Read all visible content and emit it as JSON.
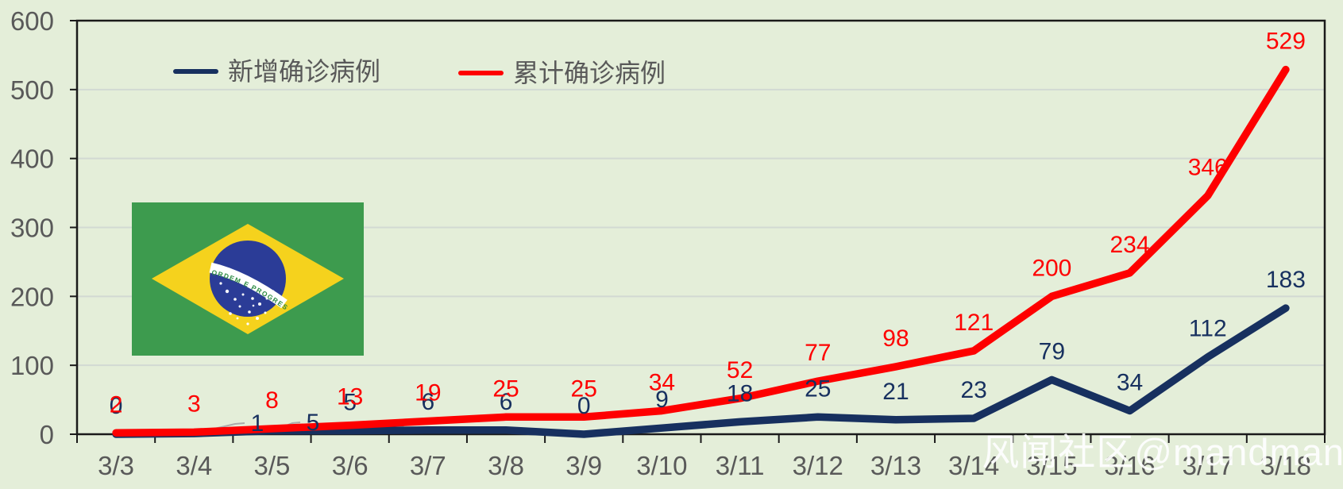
{
  "chart_data": {
    "type": "line",
    "categories": [
      "3/3",
      "3/4",
      "3/5",
      "3/6",
      "3/7",
      "3/8",
      "3/9",
      "3/10",
      "3/11",
      "3/12",
      "3/13",
      "3/14",
      "3/15",
      "3/16",
      "3/17",
      "3/18"
    ],
    "series": [
      {
        "name": "新增确诊病例",
        "color": "#17305f",
        "values": [
          0,
          1,
          5,
          5,
          6,
          6,
          0,
          9,
          18,
          25,
          21,
          23,
          79,
          34,
          112,
          183
        ]
      },
      {
        "name": "累计确诊病例",
        "color": "#fe0000",
        "values": [
          2,
          3,
          8,
          13,
          19,
          25,
          25,
          34,
          52,
          77,
          98,
          121,
          200,
          234,
          346,
          529
        ]
      }
    ],
    "title": "",
    "xlabel": "",
    "ylabel": "",
    "ylim": [
      0,
      600
    ],
    "yticks": [
      0,
      100,
      200,
      300,
      400,
      500,
      600
    ],
    "grid": "horizontal",
    "legend_position": "top-inside"
  },
  "legend": {
    "items": [
      {
        "label": "新增确诊病例",
        "color": "#17305f"
      },
      {
        "label": "累计确诊病例",
        "color": "#fe0000"
      }
    ]
  },
  "watermark": {
    "text": "风闻社区@mandman",
    "color": "#ffffff"
  },
  "flag": {
    "country": "Brazil",
    "motto": "ORDEM E PROGRESSO",
    "green": "#3d9b4e",
    "yellow": "#f5d21d",
    "blue": "#2b3c97",
    "band_white": "#ffffff",
    "motto_green": "#2e8b45"
  },
  "colors": {
    "background": "#e4eed9",
    "plot_border": "#1a1a1a",
    "gridline": "#d2d9d3",
    "axis_label": "#595959",
    "leader_line": "#ababab"
  }
}
